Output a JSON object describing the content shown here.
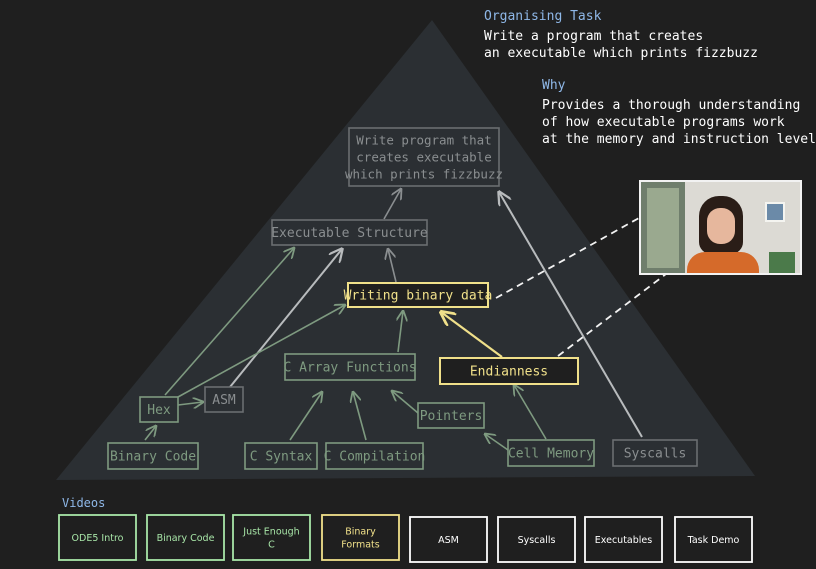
{
  "task": {
    "heading": "Organising Task",
    "text": "Write a program that creates\nan executable which prints fizzbuzz"
  },
  "why": {
    "heading": "Why",
    "text": "Provides a thorough understanding\nof how executable programs work\nat the memory and instruction level"
  },
  "colors": {
    "background": "#1f1f1f",
    "triangle": "#2b2f33",
    "node_gray": "#6a6e71",
    "node_gray_text": "#8a8e90",
    "node_green": "#7e9a80",
    "node_yellow": "#f0e08a",
    "video_green": "#a8e6a8",
    "video_yellow": "#f0e08a",
    "video_white": "#ffffff",
    "heading_blue": "#8fb8e8"
  },
  "nodes": [
    {
      "id": "top",
      "lines": [
        "Write program that",
        "creates executable",
        "which prints fizzbuzz"
      ],
      "style": "gray",
      "icon": null
    },
    {
      "id": "exec",
      "lines": [
        "Executable Structure"
      ],
      "style": "gray"
    },
    {
      "id": "wbd",
      "lines": [
        "Writing binary data"
      ],
      "style": "yellow"
    },
    {
      "id": "carr",
      "lines": [
        "C Array Functions"
      ],
      "style": "green"
    },
    {
      "id": "endian",
      "lines": [
        "Endianness"
      ],
      "style": "yellow"
    },
    {
      "id": "hex",
      "lines": [
        "Hex"
      ],
      "style": "green"
    },
    {
      "id": "asm",
      "lines": [
        "ASM"
      ],
      "style": "gray"
    },
    {
      "id": "ptr",
      "lines": [
        "Pointers"
      ],
      "style": "green"
    },
    {
      "id": "bincode",
      "lines": [
        "Binary Code"
      ],
      "style": "green"
    },
    {
      "id": "csyn",
      "lines": [
        "C Syntax"
      ],
      "style": "green"
    },
    {
      "id": "ccomp",
      "lines": [
        "C Compilation"
      ],
      "style": "green"
    },
    {
      "id": "cellmem",
      "lines": [
        "Cell Memory"
      ],
      "style": "green"
    },
    {
      "id": "syscalls",
      "lines": [
        "Syscalls"
      ],
      "style": "gray"
    }
  ],
  "videos": {
    "label": "Videos",
    "items": [
      {
        "lines": [
          "ODE5 Intro"
        ],
        "style": "green"
      },
      {
        "lines": [
          "Binary Code"
        ],
        "style": "green"
      },
      {
        "lines": [
          "Just Enough",
          "C"
        ],
        "style": "green"
      },
      {
        "lines": [
          "Binary",
          "Formats"
        ],
        "style": "yellow"
      },
      {
        "lines": [
          "ASM"
        ],
        "style": "white"
      },
      {
        "lines": [
          "Syscalls"
        ],
        "style": "white"
      },
      {
        "lines": [
          "Executables"
        ],
        "style": "white"
      },
      {
        "lines": [
          "Task Demo"
        ],
        "style": "white"
      }
    ]
  }
}
